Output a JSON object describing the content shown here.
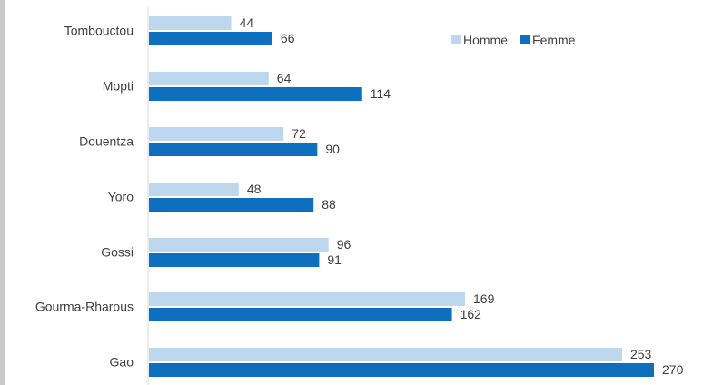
{
  "chart_data": {
    "type": "bar",
    "orientation": "horizontal",
    "categories": [
      "Tombouctou",
      "Mopti",
      "Douentza",
      "Yoro",
      "Gossi",
      "Gourma-Rharous",
      "Gao"
    ],
    "series": [
      {
        "name": "Homme",
        "values": [
          44,
          64,
          72,
          48,
          96,
          169,
          253
        ],
        "color": "#bdd7ee"
      },
      {
        "name": "Femme",
        "values": [
          66,
          114,
          90,
          88,
          91,
          162,
          270
        ],
        "color": "#0f6fbf"
      }
    ],
    "xlim": [
      0,
      280
    ],
    "grid": false,
    "legend_position": "top-right",
    "data_labels": true
  }
}
